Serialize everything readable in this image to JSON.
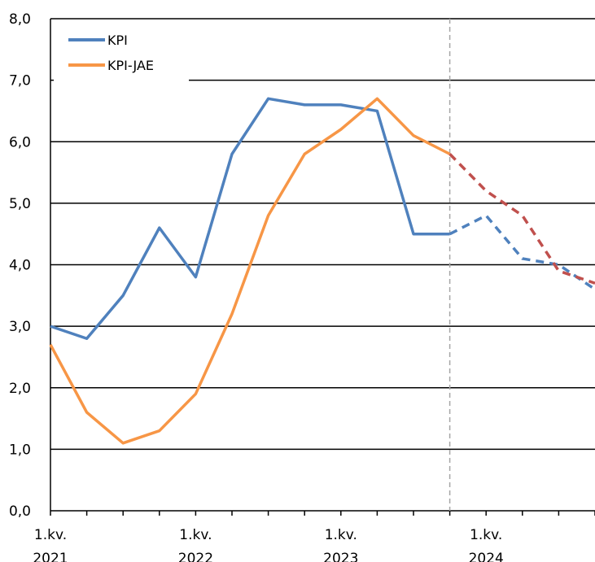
{
  "chart_data": {
    "type": "line",
    "title": "",
    "xlabel": "",
    "ylabel": "",
    "ylim": [
      0,
      8
    ],
    "y_ticks": [
      "0,0",
      "1,0",
      "2,0",
      "3,0",
      "4,0",
      "5,0",
      "6,0",
      "7,0",
      "8,0"
    ],
    "x_tick_labels": [
      {
        "quarter": "1.kv.",
        "year": "2021",
        "index": 0
      },
      {
        "quarter": "1.kv.",
        "year": "2022",
        "index": 4
      },
      {
        "quarter": "1.kv.",
        "year": "2023",
        "index": 8
      },
      {
        "quarter": "1.kv.",
        "year": "2024",
        "index": 12
      }
    ],
    "num_quarters": 16,
    "grid": "horizontal",
    "legend_placement": "top-left",
    "forecast_start_index": 11,
    "series": [
      {
        "name": "KPI",
        "color": "#4f81bd",
        "forecast_color": "#4f81bd",
        "values": [
          3.0,
          2.8,
          3.5,
          4.6,
          3.8,
          5.8,
          6.7,
          6.6,
          6.6,
          6.5,
          4.5,
          4.5,
          4.8,
          4.1,
          4.0,
          3.6
        ]
      },
      {
        "name": "KPI-JAE",
        "color": "#f79646",
        "forecast_color": "#c0504d",
        "values": [
          2.7,
          1.6,
          1.1,
          1.3,
          1.9,
          3.2,
          4.8,
          5.8,
          6.2,
          6.7,
          6.1,
          5.8,
          5.2,
          4.8,
          3.9,
          3.7
        ]
      }
    ]
  }
}
